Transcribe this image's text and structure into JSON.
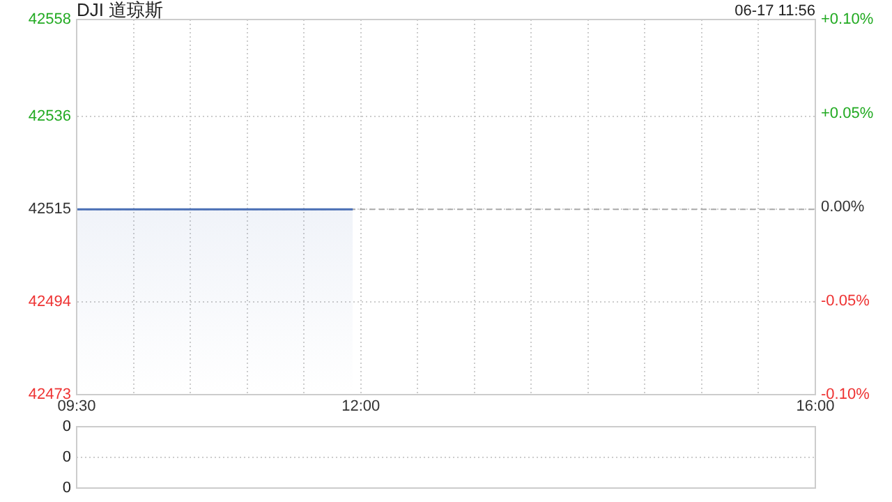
{
  "chart_data": [
    {
      "type": "area",
      "title": "DJI 道琼斯",
      "annotations": [
        "06-17 11:56"
      ],
      "series": [
        {
          "color": "#4a6fb5",
          "x": [
            9.5,
            11.93
          ],
          "values": [
            42515,
            42515
          ]
        }
      ],
      "xlim": [
        9.5,
        16
      ],
      "xticks": [
        {
          "value": 9.5,
          "label": "09:30"
        },
        {
          "value": 10,
          "label": null
        },
        {
          "value": 10.5,
          "label": null
        },
        {
          "value": 11,
          "label": null
        },
        {
          "value": 11.5,
          "label": null
        },
        {
          "value": 12,
          "label": "12:00"
        },
        {
          "value": 12.5,
          "label": null
        },
        {
          "value": 13,
          "label": null
        },
        {
          "value": 13.5,
          "label": null
        },
        {
          "value": 14,
          "label": null
        },
        {
          "value": 14.5,
          "label": null
        },
        {
          "value": 15,
          "label": null
        },
        {
          "value": 15.5,
          "label": null
        },
        {
          "value": 16,
          "label": "16:00"
        }
      ],
      "ylim": [
        42473,
        42558
      ],
      "yticks": [
        42473,
        42494,
        42515,
        42536,
        42558
      ],
      "y2lim": [
        -0.1,
        0.1
      ],
      "y2ticks": [
        {
          "value": -0.1,
          "label": "-0.10%"
        },
        {
          "value": -0.05,
          "label": "-0.05%"
        },
        {
          "value": 0,
          "label": "0.00%"
        },
        {
          "value": 0.05,
          "label": "+0.05%"
        },
        {
          "value": 0.1,
          "label": "+0.10%"
        }
      ],
      "ref_lines": [
        {
          "axis": "y",
          "value": 42515,
          "color": "#aaaaaa",
          "line_style": "dashed"
        }
      ],
      "grid": true,
      "legend": false
    },
    {
      "type": "other",
      "annotations": [
        "0",
        "0",
        "0"
      ]
    }
  ]
}
